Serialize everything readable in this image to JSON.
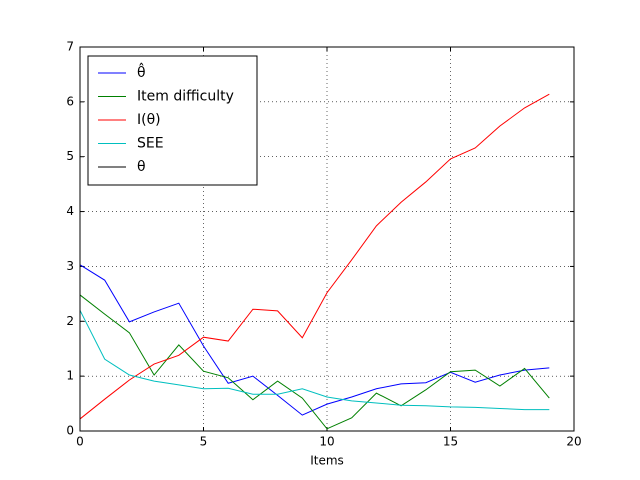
{
  "chart_data": {
    "type": "line",
    "xlabel": "Items",
    "x": [
      0,
      1,
      2,
      3,
      4,
      5,
      6,
      7,
      8,
      9,
      10,
      11,
      12,
      13,
      14,
      15,
      16,
      17,
      18,
      19
    ],
    "series": [
      {
        "name": "θ̂",
        "color": "#0000ff",
        "values": [
          3.03,
          2.75,
          1.99,
          2.17,
          2.33,
          1.55,
          0.87,
          1.0,
          0.65,
          0.29,
          0.49,
          0.62,
          0.77,
          0.86,
          0.88,
          1.07,
          0.89,
          1.02,
          1.11,
          1.15
        ]
      },
      {
        "name": "Item difficulty",
        "color": "#008000",
        "values": [
          2.48,
          2.13,
          1.79,
          1.02,
          1.57,
          1.09,
          0.97,
          0.57,
          0.91,
          0.6,
          0.04,
          0.24,
          0.69,
          0.46,
          0.75,
          1.08,
          1.11,
          0.82,
          1.14,
          0.6
        ]
      },
      {
        "name": "I(θ)",
        "color": "#ff0000",
        "values": [
          0.22,
          0.58,
          0.93,
          1.22,
          1.38,
          1.71,
          1.64,
          2.22,
          2.19,
          1.7,
          2.52,
          3.12,
          3.74,
          4.17,
          4.54,
          4.96,
          5.16,
          5.56,
          5.89,
          6.14
        ]
      },
      {
        "name": "SEE",
        "color": "#00bfbf",
        "values": [
          2.2,
          1.31,
          1.02,
          0.91,
          0.84,
          0.77,
          0.78,
          0.67,
          0.67,
          0.77,
          0.62,
          0.55,
          0.51,
          0.47,
          0.46,
          0.44,
          0.43,
          0.41,
          0.39,
          0.39
        ]
      },
      {
        "name": "θ",
        "color": "#000000",
        "values": [
          null,
          null,
          null,
          null,
          null,
          null,
          null,
          null,
          null,
          null,
          null,
          null,
          null,
          null,
          null,
          null,
          null,
          null,
          null,
          null
        ]
      }
    ],
    "xlim": [
      0,
      20
    ],
    "xticks": [
      0,
      5,
      10,
      15,
      20
    ],
    "ylim": [
      0,
      7
    ],
    "yticks": [
      0,
      1,
      2,
      3,
      4,
      5,
      6,
      7
    ],
    "grid": true,
    "legend": "upper left"
  }
}
